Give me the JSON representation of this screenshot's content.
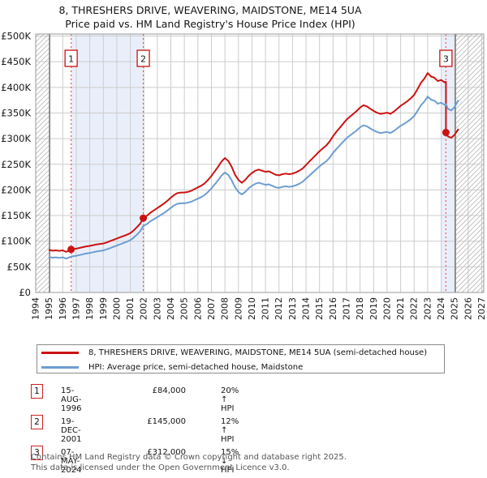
{
  "title": {
    "line1": "8, THRESHERS DRIVE, WEAVERING, MAIDSTONE, ME14 5UA",
    "line2": "Price paid vs. HM Land Registry's House Price Index (HPI)"
  },
  "legend": [
    {
      "label": "8, THRESHERS DRIVE, WEAVERING, MAIDSTONE, ME14 5UA (semi-detached house)",
      "color": "#cc1111"
    },
    {
      "label": "HPI: Average price, semi-detached house, Maidstone",
      "color": "#6d9dd1"
    }
  ],
  "transactions": [
    {
      "num": "1",
      "date": "15-AUG-1996",
      "price": "£84,000",
      "hpi_delta": "20% ↑ HPI"
    },
    {
      "num": "2",
      "date": "19-DEC-2001",
      "price": "£145,000",
      "hpi_delta": "12% ↑ HPI"
    },
    {
      "num": "3",
      "date": "07-MAY-2024",
      "price": "£312,000",
      "hpi_delta": "15% ↓ HPI"
    }
  ],
  "footer": {
    "line1": "Contains HM Land Registry data © Crown copyright and database right 2025.",
    "line2": "This data is licensed under the Open Government Licence v3.0."
  },
  "chart_data": {
    "type": "line",
    "title": "8, THRESHERS DRIVE, WEAVERING, MAIDSTONE, ME14 5UA — Price paid vs. HPI",
    "x_axis": {
      "start": 1994,
      "end": 2027,
      "tick_years": [
        1994,
        1995,
        1996,
        1997,
        1998,
        1999,
        2000,
        2001,
        2002,
        2003,
        2004,
        2005,
        2006,
        2007,
        2008,
        2009,
        2010,
        2011,
        2012,
        2013,
        2014,
        2015,
        2016,
        2017,
        2018,
        2019,
        2020,
        2021,
        2022,
        2023,
        2024,
        2025,
        2026,
        2027
      ]
    },
    "y_axis": {
      "unit": "GBP",
      "max_k": 504,
      "tick_values_k": [
        0,
        50,
        100,
        150,
        200,
        250,
        300,
        350,
        400,
        450,
        500
      ],
      "tick_labels": [
        "£0",
        "£50K",
        "£100K",
        "£150K",
        "£200K",
        "£250K",
        "£300K",
        "£350K",
        "£400K",
        "£450K",
        "£500K"
      ]
    },
    "bands": [
      {
        "from": 1996.62,
        "to": 2001.96
      },
      {
        "from": 2024.03,
        "to": 2025.05
      }
    ],
    "hatch_regions": [
      {
        "from": 1994,
        "to": 1995.03
      },
      {
        "from": 2025.05,
        "to": 2027.15
      }
    ],
    "data_edges": [
      1995.03,
      2025.05
    ],
    "markers": [
      {
        "label": "1",
        "x": 1996.62,
        "price_k": 84
      },
      {
        "label": "2",
        "x": 2001.96,
        "price_k": 145
      },
      {
        "label": "3",
        "x": 2024.35,
        "price_k": 312
      }
    ],
    "series": [
      {
        "name": "price-paid-hpi-adjusted",
        "color": "#cc1111",
        "points": [
          [
            1995.0,
            82.8
          ],
          [
            1995.25,
            81.6
          ],
          [
            1995.5,
            82.2
          ],
          [
            1995.75,
            81.0
          ],
          [
            1996.0,
            82.2
          ],
          [
            1996.25,
            79.2
          ],
          [
            1996.5,
            82.2
          ],
          [
            1996.62,
            84.0
          ],
          [
            1996.75,
            84.5
          ],
          [
            1997.0,
            85.4
          ],
          [
            1997.25,
            86.9
          ],
          [
            1997.5,
            88.4
          ],
          [
            1997.75,
            89.9
          ],
          [
            1998.0,
            90.8
          ],
          [
            1998.25,
            92.3
          ],
          [
            1998.5,
            93.7
          ],
          [
            1998.75,
            94.6
          ],
          [
            1999.0,
            95.5
          ],
          [
            1999.25,
            97.5
          ],
          [
            1999.5,
            100.1
          ],
          [
            1999.75,
            102.6
          ],
          [
            2000.0,
            105.2
          ],
          [
            2000.25,
            107.7
          ],
          [
            2000.5,
            110.2
          ],
          [
            2000.75,
            112.7
          ],
          [
            2001.0,
            115.7
          ],
          [
            2001.25,
            121.0
          ],
          [
            2001.5,
            127.6
          ],
          [
            2001.75,
            134.8
          ],
          [
            2001.96,
            145.0
          ],
          [
            2002.25,
            150.1
          ],
          [
            2002.5,
            155.7
          ],
          [
            2002.75,
            160.2
          ],
          [
            2003.0,
            164.6
          ],
          [
            2003.25,
            169.1
          ],
          [
            2003.5,
            173.6
          ],
          [
            2003.75,
            179.2
          ],
          [
            2004.0,
            184.8
          ],
          [
            2004.25,
            190.4
          ],
          [
            2004.5,
            193.8
          ],
          [
            2004.75,
            194.9
          ],
          [
            2005.0,
            194.9
          ],
          [
            2005.25,
            196.0
          ],
          [
            2005.5,
            198.2
          ],
          [
            2005.75,
            201.6
          ],
          [
            2006.0,
            205.0
          ],
          [
            2006.25,
            208.3
          ],
          [
            2006.5,
            212.8
          ],
          [
            2006.75,
            219.5
          ],
          [
            2007.0,
            227.4
          ],
          [
            2007.25,
            236.3
          ],
          [
            2007.5,
            245.3
          ],
          [
            2007.75,
            255.4
          ],
          [
            2008.0,
            262.1
          ],
          [
            2008.25,
            256.5
          ],
          [
            2008.5,
            245.3
          ],
          [
            2008.75,
            229.6
          ],
          [
            2009.0,
            219.5
          ],
          [
            2009.25,
            213.9
          ],
          [
            2009.5,
            219.5
          ],
          [
            2009.75,
            227.4
          ],
          [
            2010.0,
            233.0
          ],
          [
            2010.25,
            237.4
          ],
          [
            2010.5,
            239.7
          ],
          [
            2010.75,
            237.4
          ],
          [
            2011.0,
            235.2
          ],
          [
            2011.25,
            236.3
          ],
          [
            2011.5,
            233.0
          ],
          [
            2011.75,
            229.6
          ],
          [
            2012.0,
            228.5
          ],
          [
            2012.25,
            230.7
          ],
          [
            2012.5,
            231.8
          ],
          [
            2012.75,
            230.7
          ],
          [
            2013.0,
            231.8
          ],
          [
            2013.25,
            234.1
          ],
          [
            2013.5,
            237.4
          ],
          [
            2013.75,
            241.9
          ],
          [
            2014.0,
            248.6
          ],
          [
            2014.25,
            255.4
          ],
          [
            2014.5,
            262.1
          ],
          [
            2014.75,
            268.8
          ],
          [
            2015.0,
            275.5
          ],
          [
            2015.25,
            281.1
          ],
          [
            2015.5,
            286.7
          ],
          [
            2015.75,
            294.6
          ],
          [
            2016.0,
            304.6
          ],
          [
            2016.25,
            313.6
          ],
          [
            2016.5,
            321.4
          ],
          [
            2016.75,
            329.3
          ],
          [
            2017.0,
            337.1
          ],
          [
            2017.25,
            342.7
          ],
          [
            2017.5,
            348.3
          ],
          [
            2017.75,
            353.9
          ],
          [
            2018.0,
            360.6
          ],
          [
            2018.25,
            365.1
          ],
          [
            2018.5,
            362.9
          ],
          [
            2018.75,
            358.4
          ],
          [
            2019.0,
            354.0
          ],
          [
            2019.25,
            350.6
          ],
          [
            2019.5,
            348.3
          ],
          [
            2019.75,
            349.4
          ],
          [
            2020.0,
            350.6
          ],
          [
            2020.25,
            348.3
          ],
          [
            2020.5,
            352.8
          ],
          [
            2020.75,
            358.4
          ],
          [
            2021.0,
            364.0
          ],
          [
            2021.25,
            368.5
          ],
          [
            2021.5,
            373.0
          ],
          [
            2021.75,
            378.6
          ],
          [
            2022.0,
            385.3
          ],
          [
            2022.25,
            396.5
          ],
          [
            2022.5,
            408.8
          ],
          [
            2022.75,
            416.6
          ],
          [
            2023.0,
            427.8
          ],
          [
            2023.25,
            421.1
          ],
          [
            2023.5,
            418.9
          ],
          [
            2023.75,
            412.2
          ],
          [
            2024.0,
            414.4
          ],
          [
            2024.25,
            409.9
          ],
          [
            2024.35,
            411.0
          ],
          [
            2024.35,
            312.0
          ],
          [
            2024.5,
            304.3
          ],
          [
            2024.75,
            301.8
          ],
          [
            2025.0,
            307.7
          ],
          [
            2025.25,
            317.9
          ]
        ]
      },
      {
        "name": "hpi-average-maidstone-semi-detached",
        "color": "#6d9dd1",
        "points": [
          [
            1995.0,
            69
          ],
          [
            1995.25,
            68
          ],
          [
            1995.5,
            68.5
          ],
          [
            1995.75,
            67.5
          ],
          [
            1996.0,
            68.5
          ],
          [
            1996.25,
            66
          ],
          [
            1996.5,
            68.5
          ],
          [
            1996.62,
            70
          ],
          [
            1996.75,
            70.5
          ],
          [
            1997.0,
            71.5
          ],
          [
            1997.25,
            73
          ],
          [
            1997.5,
            74.5
          ],
          [
            1997.75,
            76
          ],
          [
            1998.0,
            77
          ],
          [
            1998.25,
            78.5
          ],
          [
            1998.5,
            80
          ],
          [
            1998.75,
            81
          ],
          [
            1999.0,
            82
          ],
          [
            1999.25,
            84
          ],
          [
            1999.5,
            86.5
          ],
          [
            1999.75,
            89
          ],
          [
            2000.0,
            91.5
          ],
          [
            2000.25,
            94
          ],
          [
            2000.5,
            96.5
          ],
          [
            2000.75,
            99
          ],
          [
            2001.0,
            102
          ],
          [
            2001.25,
            107
          ],
          [
            2001.5,
            113
          ],
          [
            2001.75,
            120
          ],
          [
            2001.96,
            129.5
          ],
          [
            2002.25,
            134
          ],
          [
            2002.5,
            139
          ],
          [
            2002.75,
            143
          ],
          [
            2003.0,
            147
          ],
          [
            2003.25,
            151
          ],
          [
            2003.5,
            155
          ],
          [
            2003.75,
            160
          ],
          [
            2004.0,
            165
          ],
          [
            2004.25,
            170
          ],
          [
            2004.5,
            173
          ],
          [
            2004.75,
            174
          ],
          [
            2005.0,
            174
          ],
          [
            2005.25,
            175
          ],
          [
            2005.5,
            177
          ],
          [
            2005.75,
            180
          ],
          [
            2006.0,
            183
          ],
          [
            2006.25,
            186
          ],
          [
            2006.5,
            190
          ],
          [
            2006.75,
            196
          ],
          [
            2007.0,
            203
          ],
          [
            2007.25,
            211
          ],
          [
            2007.5,
            219
          ],
          [
            2007.75,
            228
          ],
          [
            2008.0,
            234
          ],
          [
            2008.25,
            229
          ],
          [
            2008.5,
            219
          ],
          [
            2008.75,
            205
          ],
          [
            2009.0,
            196
          ],
          [
            2009.25,
            191
          ],
          [
            2009.5,
            196
          ],
          [
            2009.75,
            203
          ],
          [
            2010.0,
            208
          ],
          [
            2010.25,
            212
          ],
          [
            2010.5,
            214
          ],
          [
            2010.75,
            212
          ],
          [
            2011.0,
            210
          ],
          [
            2011.25,
            211
          ],
          [
            2011.5,
            208
          ],
          [
            2011.75,
            205
          ],
          [
            2012.0,
            204
          ],
          [
            2012.25,
            206
          ],
          [
            2012.5,
            207
          ],
          [
            2012.75,
            206
          ],
          [
            2013.0,
            207
          ],
          [
            2013.25,
            209
          ],
          [
            2013.5,
            212
          ],
          [
            2013.75,
            216
          ],
          [
            2014.0,
            222
          ],
          [
            2014.25,
            228
          ],
          [
            2014.5,
            234
          ],
          [
            2014.75,
            240
          ],
          [
            2015.0,
            246
          ],
          [
            2015.25,
            251
          ],
          [
            2015.5,
            256
          ],
          [
            2015.75,
            263
          ],
          [
            2016.0,
            272
          ],
          [
            2016.25,
            280
          ],
          [
            2016.5,
            287
          ],
          [
            2016.75,
            294
          ],
          [
            2017.0,
            301
          ],
          [
            2017.25,
            306
          ],
          [
            2017.5,
            311
          ],
          [
            2017.75,
            316
          ],
          [
            2018.0,
            322
          ],
          [
            2018.25,
            326
          ],
          [
            2018.5,
            324
          ],
          [
            2018.75,
            320
          ],
          [
            2019.0,
            316
          ],
          [
            2019.25,
            313
          ],
          [
            2019.5,
            311
          ],
          [
            2019.75,
            312
          ],
          [
            2020.0,
            313
          ],
          [
            2020.25,
            311
          ],
          [
            2020.5,
            315
          ],
          [
            2020.75,
            320
          ],
          [
            2021.0,
            325
          ],
          [
            2021.25,
            329
          ],
          [
            2021.5,
            333
          ],
          [
            2021.75,
            338
          ],
          [
            2022.0,
            344
          ],
          [
            2022.25,
            354
          ],
          [
            2022.5,
            365
          ],
          [
            2022.75,
            372
          ],
          [
            2023.0,
            382
          ],
          [
            2023.25,
            376
          ],
          [
            2023.5,
            374
          ],
          [
            2023.75,
            368
          ],
          [
            2024.0,
            370
          ],
          [
            2024.25,
            366
          ],
          [
            2024.35,
            367
          ],
          [
            2024.5,
            358
          ],
          [
            2024.75,
            355
          ],
          [
            2025.0,
            362
          ],
          [
            2025.25,
            374
          ]
        ]
      }
    ],
    "style": {
      "band_color": "#e9effa",
      "grid_color": "#cccccc",
      "hatch_color": "#bcbcbc",
      "dashed_color": "#ee5555",
      "border_color": "#999999",
      "edge_color": "#666666",
      "marker_box_border": "#cc1111"
    }
  }
}
